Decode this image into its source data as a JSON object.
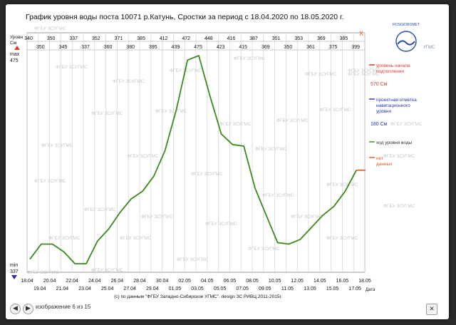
{
  "title": "График уровня воды поста 10071 р.Катунь, Сростки за период с 18.04.2020 по 18.05.2020 г.",
  "chart_data": {
    "type": "line",
    "ylabel_lines": [
      "Уровн",
      "См"
    ],
    "xlabel": "Дата",
    "max_label": "max",
    "min_label": "min",
    "ylim": [
      337,
      475
    ],
    "y_max_value": "475",
    "y_min_value": "337",
    "top_row_a": [
      "340",
      "350",
      "337",
      "352",
      "371",
      "385",
      "412",
      "472",
      "448",
      "416",
      "387",
      "351",
      "353",
      "369",
      "385",
      "X"
    ],
    "top_row_b": [
      "350",
      "345",
      "337",
      "360",
      "380",
      "395",
      "439",
      "475",
      "423",
      "415",
      "369",
      "350",
      "361",
      "375",
      "399"
    ],
    "dates_top": [
      "18.04",
      "20.04",
      "22.04",
      "24.04",
      "26.04",
      "28.04",
      "30.04",
      "02.05",
      "04.05",
      "06.05",
      "08.05",
      "10.05",
      "12.05",
      "14.05",
      "16.05",
      "18.05"
    ],
    "dates_bottom": [
      "19.04",
      "21.04",
      "23.04",
      "25.04",
      "27.04",
      "29.04",
      "01.05",
      "03.05",
      "05.05",
      "07.05",
      "09.05",
      "11.05",
      "13.05",
      "15.05",
      "17.05"
    ],
    "series": [
      {
        "name": "ход уровня воды",
        "color": "#3a8a1a",
        "values": [
          340,
          350,
          350,
          345,
          337,
          337,
          352,
          360,
          371,
          380,
          385,
          395,
          412,
          439,
          472,
          475,
          448,
          423,
          416,
          415,
          387,
          369,
          351,
          350,
          353,
          361,
          369,
          375,
          385,
          399
        ]
      },
      {
        "name": "нет данных",
        "color": "#e05a1a",
        "values": [
          399,
          399
        ]
      }
    ],
    "legend": [
      {
        "lines": [
          "уровень начала",
          "подтопления"
        ],
        "value": "570 См",
        "color": "#d93a2b"
      },
      {
        "lines": [
          "проектная отметка",
          "навигационного",
          "уровня"
        ],
        "value": "180 См",
        "color": "#2a2fb0"
      },
      {
        "lines": [
          "ход уровня воды"
        ],
        "value": "",
        "color": "#3a8a1a"
      },
      {
        "lines": [
          "нет",
          "данных"
        ],
        "value": "",
        "color": "#e05a1a"
      }
    ],
    "watermark": "ФГБУ ЗСУГМС",
    "footer": "(с) по данным \"ФГБУ Западно-Сибирское УГМС\". design ЗС РИВЦ 2011-2015г.",
    "logo_text": "ROSGIDROMET",
    "logo_sub": "УГМС"
  },
  "viewer": {
    "prev": "◀",
    "next": "▶",
    "counter": "изображение 6 из 15",
    "close": "✕"
  }
}
